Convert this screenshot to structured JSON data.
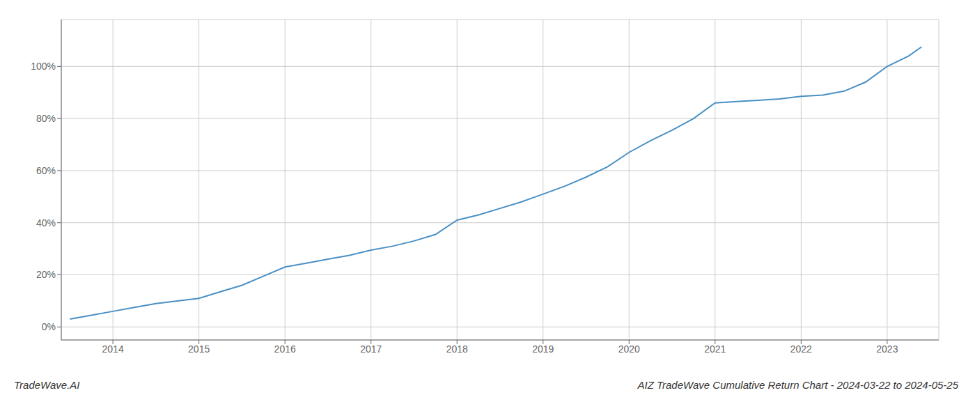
{
  "chart_data": {
    "type": "line",
    "title": "AIZ TradeWave Cumulative Return Chart - 2024-03-22 to 2024-05-25",
    "annotations": [
      "TradeWave.AI"
    ],
    "x": [
      2013.5,
      2013.75,
      2014.0,
      2014.25,
      2014.5,
      2014.75,
      2015.0,
      2015.25,
      2015.5,
      2015.75,
      2016.0,
      2016.25,
      2016.5,
      2016.75,
      2017.0,
      2017.25,
      2017.5,
      2017.75,
      2018.0,
      2018.25,
      2018.5,
      2018.75,
      2019.0,
      2019.25,
      2019.5,
      2019.75,
      2020.0,
      2020.25,
      2020.5,
      2020.75,
      2021.0,
      2021.25,
      2021.5,
      2021.75,
      2022.0,
      2022.25,
      2022.5,
      2022.75,
      2023.0,
      2023.25,
      2023.4
    ],
    "values": [
      3.0,
      4.5,
      6.0,
      7.5,
      9.0,
      10.0,
      11.0,
      13.5,
      16.0,
      19.5,
      23.0,
      24.5,
      26.0,
      27.5,
      29.5,
      31.0,
      33.0,
      35.5,
      41.0,
      43.0,
      45.5,
      48.0,
      51.0,
      54.0,
      57.5,
      61.5,
      67.0,
      71.5,
      75.5,
      80.0,
      86.0,
      86.5,
      87.0,
      87.5,
      88.5,
      89.0,
      90.5,
      94.0,
      100.0,
      104.0,
      107.5
    ],
    "color": "#4a90c4",
    "xlim": [
      2013.4,
      2023.6
    ],
    "ylim": [
      -5,
      118
    ],
    "xticks": [
      2014,
      2015,
      2016,
      2017,
      2018,
      2019,
      2020,
      2021,
      2022,
      2023
    ],
    "yticks": [
      {
        "value": 0,
        "label": "0%"
      },
      {
        "value": 20,
        "label": "20%"
      },
      {
        "value": 40,
        "label": "40%"
      },
      {
        "value": 60,
        "label": "60%"
      },
      {
        "value": 80,
        "label": "80%"
      },
      {
        "value": 100,
        "label": "100%"
      }
    ],
    "grid": true
  }
}
